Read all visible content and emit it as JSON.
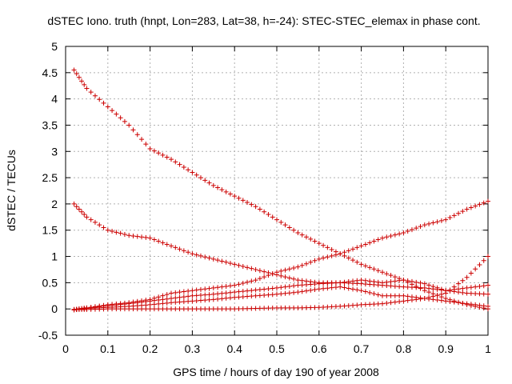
{
  "chart_data": {
    "type": "scatter",
    "title": "dSTEC Iono. truth (hnpt, Lon=283, Lat=38, h=-24): STEC-STEC_elemax in phase cont.",
    "xlabel": "GPS time / hours of day 190 of year 2008",
    "ylabel": "dSTEC  / TECUs",
    "xlim": [
      0,
      1
    ],
    "ylim": [
      -0.5,
      5
    ],
    "x_ticks": [
      "0",
      "0.1",
      "0.2",
      "0.3",
      "0.4",
      "0.5",
      "0.6",
      "0.7",
      "0.8",
      "0.9",
      "1"
    ],
    "y_ticks": [
      "-0.5",
      "0",
      "0.5",
      "1",
      "1.5",
      "2",
      "2.5",
      "3",
      "3.5",
      "4",
      "4.5",
      "5"
    ],
    "grid": true,
    "marker": "plus",
    "color": "#cc0000",
    "series": [
      {
        "x": [
          0.02,
          0.05,
          0.1,
          0.15,
          0.2,
          0.25,
          0.3,
          0.35,
          0.4,
          0.45,
          0.5,
          0.55,
          0.6,
          0.65,
          0.7,
          0.75,
          0.8,
          0.85,
          0.9,
          0.95,
          1.0
        ],
        "y": [
          4.55,
          4.2,
          3.85,
          3.5,
          3.05,
          2.85,
          2.6,
          2.35,
          2.15,
          1.95,
          1.7,
          1.45,
          1.25,
          1.05,
          0.85,
          0.7,
          0.55,
          0.35,
          0.2,
          0.08,
          0.0
        ]
      },
      {
        "x": [
          0.02,
          0.05,
          0.1,
          0.15,
          0.2,
          0.25,
          0.3,
          0.35,
          0.4,
          0.45,
          0.5,
          0.55,
          0.6,
          0.65,
          0.7,
          0.75,
          0.8,
          0.85,
          0.9,
          0.95,
          1.0
        ],
        "y": [
          2.0,
          1.75,
          1.5,
          1.4,
          1.35,
          1.2,
          1.05,
          0.95,
          0.85,
          0.75,
          0.65,
          0.55,
          0.5,
          0.5,
          0.48,
          0.45,
          0.42,
          0.4,
          0.35,
          0.4,
          0.45
        ]
      },
      {
        "x": [
          0.02,
          0.05,
          0.1,
          0.15,
          0.2,
          0.25,
          0.3,
          0.35,
          0.4,
          0.45,
          0.5,
          0.55,
          0.6,
          0.65,
          0.7,
          0.75,
          0.8,
          0.85,
          0.9,
          0.95,
          1.0
        ],
        "y": [
          -0.02,
          0.02,
          0.08,
          0.12,
          0.18,
          0.3,
          0.35,
          0.4,
          0.45,
          0.55,
          0.7,
          0.8,
          0.95,
          1.05,
          1.2,
          1.35,
          1.45,
          1.6,
          1.7,
          1.9,
          2.05
        ]
      },
      {
        "x": [
          0.02,
          0.05,
          0.1,
          0.15,
          0.2,
          0.25,
          0.3,
          0.35,
          0.4,
          0.45,
          0.5,
          0.55,
          0.6,
          0.65,
          0.7,
          0.75,
          0.8,
          0.85,
          0.9,
          0.95,
          1.0
        ],
        "y": [
          -0.01,
          0.02,
          0.06,
          0.1,
          0.15,
          0.2,
          0.25,
          0.28,
          0.32,
          0.36,
          0.4,
          0.45,
          0.48,
          0.5,
          0.55,
          0.5,
          0.55,
          0.48,
          0.35,
          0.3,
          0.28
        ]
      },
      {
        "x": [
          0.02,
          0.05,
          0.1,
          0.15,
          0.2,
          0.25,
          0.3,
          0.35,
          0.4,
          0.45,
          0.5,
          0.55,
          0.6,
          0.65,
          0.7,
          0.75,
          0.8,
          0.85,
          0.9,
          0.95,
          1.0
        ],
        "y": [
          -0.01,
          0.01,
          0.03,
          0.05,
          0.08,
          0.12,
          0.15,
          0.18,
          0.22,
          0.25,
          0.28,
          0.32,
          0.38,
          0.42,
          0.35,
          0.25,
          0.25,
          0.2,
          0.15,
          0.1,
          0.05
        ]
      },
      {
        "x": [
          0.02,
          0.05,
          0.1,
          0.15,
          0.2,
          0.25,
          0.3,
          0.35,
          0.4,
          0.45,
          0.5,
          0.55,
          0.6,
          0.65,
          0.7,
          0.75,
          0.8,
          0.85,
          0.9,
          0.95,
          1.0
        ],
        "y": [
          -0.01,
          -0.01,
          0.0,
          0.0,
          0.0,
          0.0,
          0.0,
          0.0,
          0.0,
          0.01,
          0.02,
          0.02,
          0.03,
          0.05,
          0.08,
          0.1,
          0.15,
          0.2,
          0.3,
          0.6,
          1.0
        ]
      }
    ]
  }
}
